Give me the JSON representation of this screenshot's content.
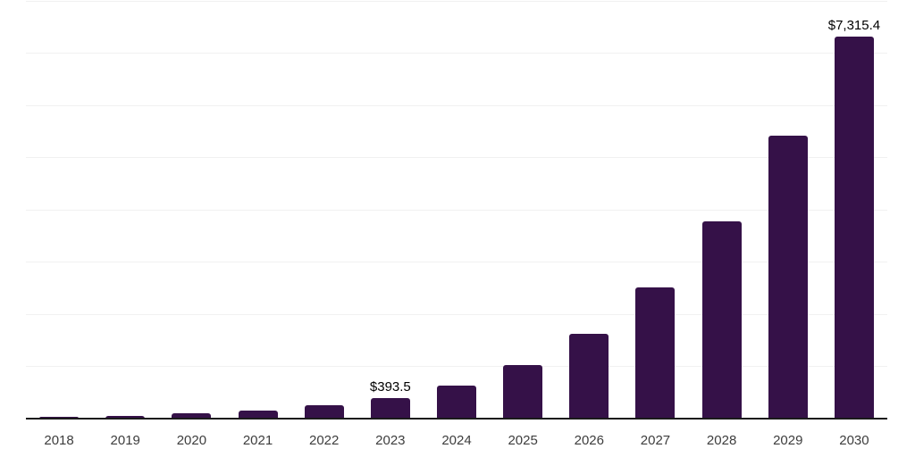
{
  "chart_data": {
    "type": "bar",
    "title": "",
    "xlabel": "",
    "ylabel": "",
    "categories": [
      "2018",
      "2019",
      "2020",
      "2021",
      "2022",
      "2023",
      "2024",
      "2025",
      "2026",
      "2027",
      "2028",
      "2029",
      "2030"
    ],
    "values": [
      40,
      58,
      107,
      158,
      250,
      393.5,
      635,
      1020,
      1620,
      2515,
      3780,
      5420,
      7315.4
    ],
    "labeled_points": [
      {
        "index": 5,
        "label": "$393.5"
      },
      {
        "index": 12,
        "label": "$7,315.4"
      }
    ],
    "ylim": [
      0,
      8000
    ],
    "gridline_step": 1000,
    "grid": "horizontal-only",
    "legend": "none",
    "y_axis_tick_labels_visible": false,
    "currency_prefix": "$"
  },
  "colors": {
    "background": "#ffffff",
    "bar_fill": "#351148",
    "gridline": "#f1f1f1",
    "axis_line": "#1a1a1a",
    "x_tick_label": "#3d3d3d",
    "value_label": "#000000"
  }
}
